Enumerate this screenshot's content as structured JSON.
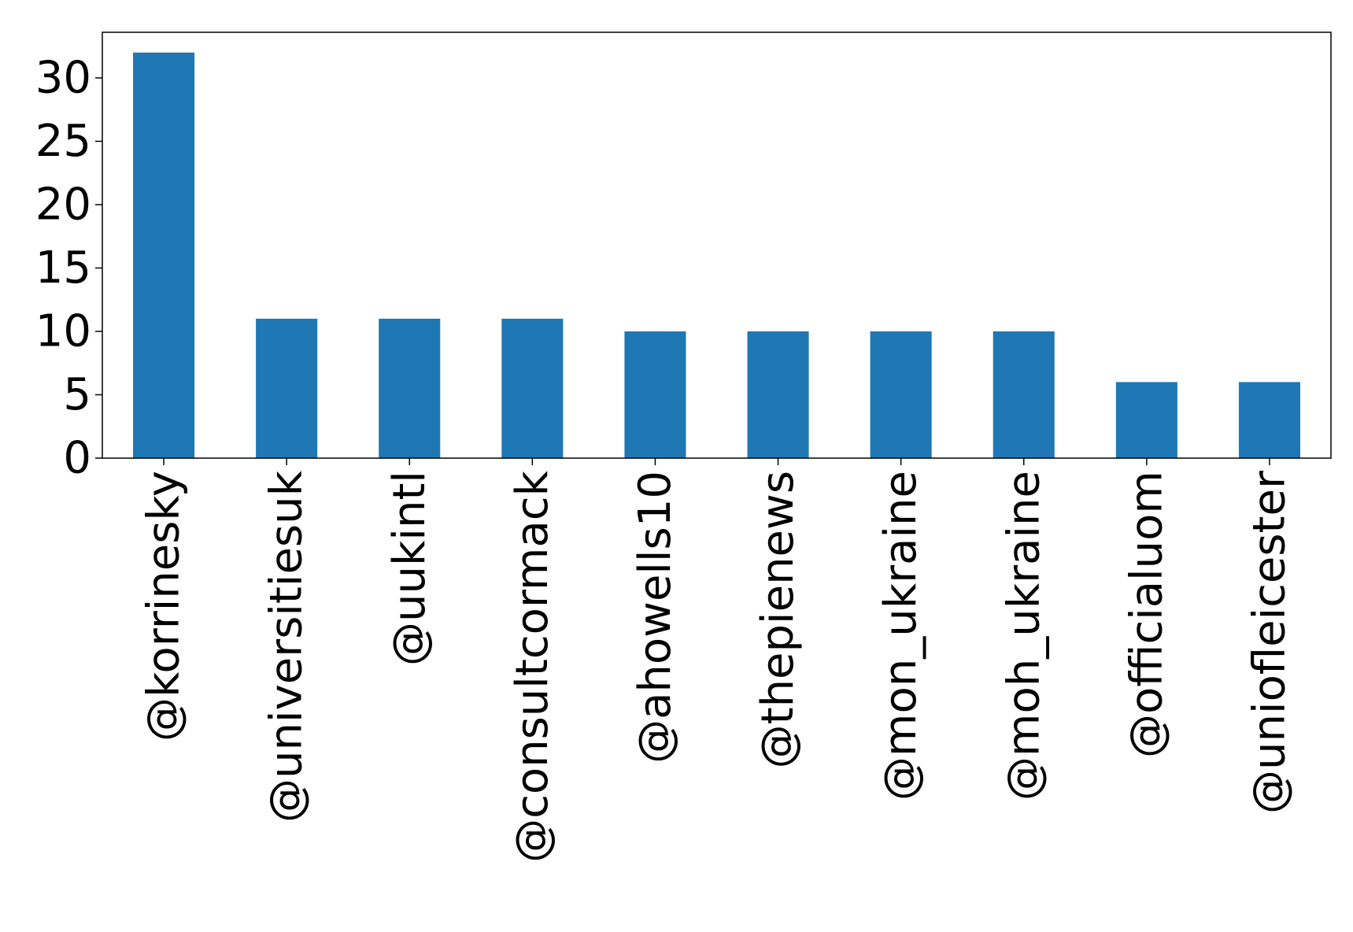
{
  "chart_data": {
    "type": "bar",
    "title": "",
    "xlabel": "",
    "ylabel": "",
    "categories": [
      "@korrinesky",
      "@universitiesuk",
      "@uukintl",
      "@consultcormack",
      "@ahowells10",
      "@thepienews",
      "@mon_ukraine",
      "@moh_ukraine",
      "@officialuom",
      "@uniofleicester"
    ],
    "values": [
      32,
      11,
      11,
      11,
      10,
      10,
      10,
      10,
      6,
      6
    ],
    "ylim": [
      0,
      33.6
    ],
    "yticks": [
      0,
      5,
      10,
      15,
      20,
      25,
      30
    ],
    "grid": false,
    "legend": "none",
    "colors": {
      "bar": "#1f77b4",
      "axis": "#000000",
      "background": "#ffffff"
    }
  }
}
